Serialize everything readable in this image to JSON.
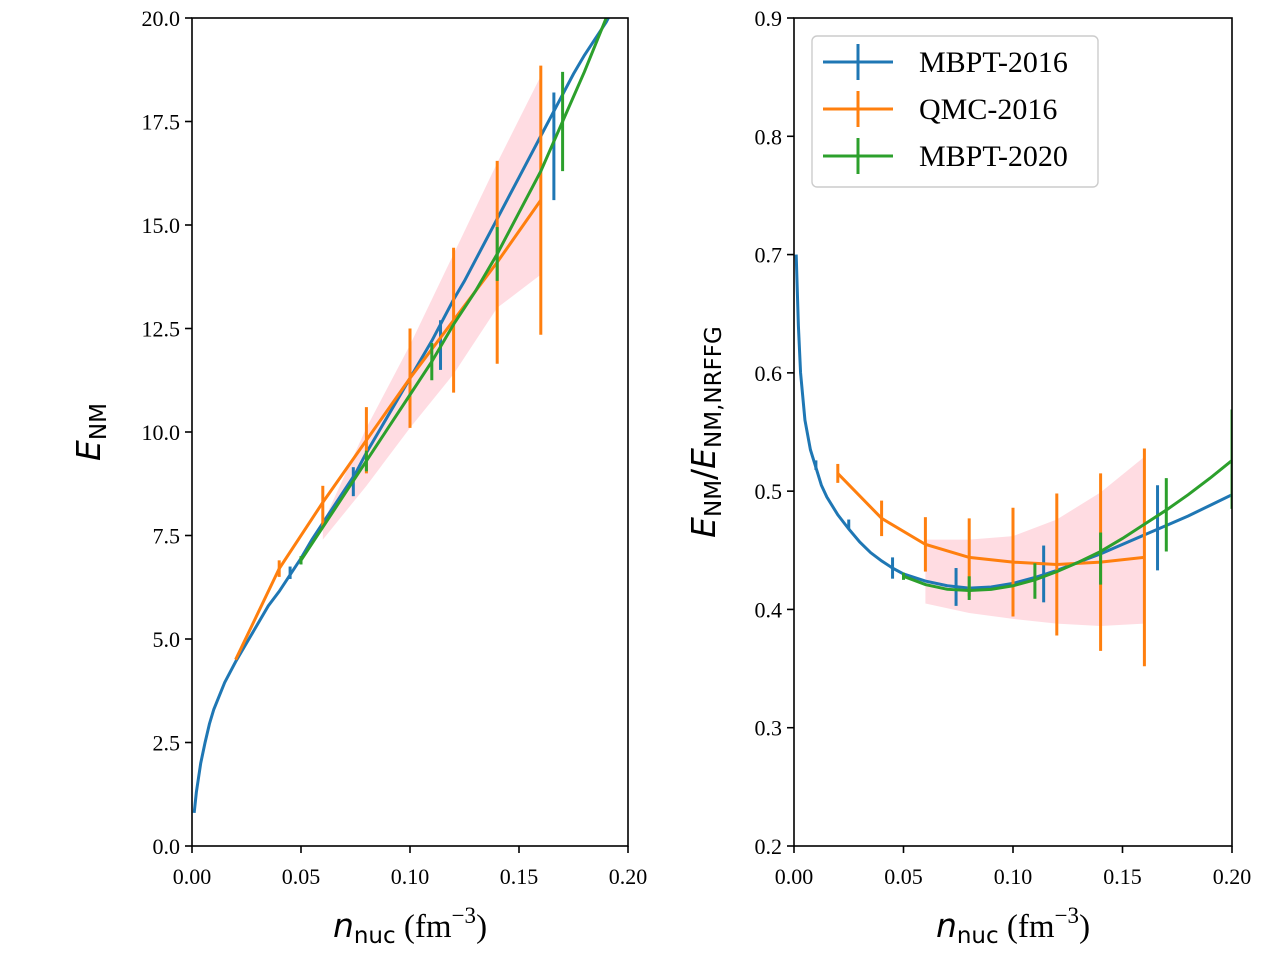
{
  "chart_data": [
    {
      "type": "line",
      "xlim": [
        0,
        0.2
      ],
      "ylim": [
        0,
        20
      ],
      "xticks": [
        "0.00",
        "0.05",
        "0.10",
        "0.15",
        "0.20"
      ],
      "yticks": [
        "0.0",
        "2.5",
        "5.0",
        "7.5",
        "10.0",
        "12.5",
        "15.0",
        "17.5",
        "20.0"
      ],
      "xlabel": {
        "main": "n",
        "sub": "nuc",
        "unit": " (fm",
        "sup": "−3",
        "close": ")"
      },
      "ylabel": {
        "main": "E",
        "sub": "NM"
      },
      "band": {
        "color": "#ffc0cb",
        "x": [
          0.06,
          0.08,
          0.1,
          0.12,
          0.14,
          0.16
        ],
        "lower": [
          7.4,
          8.7,
          10.1,
          11.4,
          13.0,
          13.8
        ],
        "upper": [
          7.8,
          10.1,
          12.1,
          14.3,
          16.5,
          18.6
        ]
      },
      "series": [
        {
          "name": "MBPT-2016",
          "color": "#1f77b4",
          "curve": {
            "x": [
              0.001,
              0.002,
              0.004,
              0.006,
              0.008,
              0.01,
              0.015,
              0.02,
              0.025,
              0.03,
              0.035,
              0.04,
              0.045,
              0.05,
              0.055,
              0.06,
              0.065,
              0.07,
              0.075,
              0.08,
              0.085,
              0.09,
              0.095,
              0.1,
              0.105,
              0.11,
              0.115,
              0.12,
              0.125,
              0.13,
              0.135,
              0.14,
              0.145,
              0.15,
              0.155,
              0.16,
              0.165,
              0.17,
              0.175,
              0.18,
              0.185,
              0.19,
              0.195,
              0.2
            ],
            "y": [
              0.8,
              1.3,
              2.0,
              2.5,
              2.95,
              3.3,
              3.95,
              4.45,
              4.9,
              5.35,
              5.8,
              6.15,
              6.55,
              6.95,
              7.4,
              7.8,
              8.2,
              8.6,
              9.0,
              9.5,
              9.95,
              10.4,
              10.85,
              11.3,
              11.75,
              12.2,
              12.7,
              13.2,
              13.65,
              14.15,
              14.65,
              15.15,
              15.65,
              16.15,
              16.65,
              17.15,
              17.65,
              18.15,
              18.65,
              19.1,
              19.5,
              19.9,
              20.4,
              20.9
            ]
          },
          "errorbars": [
            {
              "x": 0.045,
              "y": 6.6,
              "err": 0.15
            },
            {
              "x": 0.074,
              "y": 8.8,
              "err": 0.35
            },
            {
              "x": 0.114,
              "y": 12.1,
              "err": 0.6
            },
            {
              "x": 0.166,
              "y": 16.9,
              "err": 1.3
            }
          ]
        },
        {
          "name": "QMC-2016",
          "color": "#ff7f0e",
          "curve": {
            "x": [
              0.02,
              0.04,
              0.06,
              0.08,
              0.1,
              0.12,
              0.14,
              0.16
            ],
            "y": [
              4.5,
              6.7,
              8.3,
              9.8,
              11.3,
              12.7,
              14.1,
              15.6
            ]
          },
          "errorbars": [
            {
              "x": 0.04,
              "y": 6.7,
              "err": 0.2
            },
            {
              "x": 0.06,
              "y": 8.2,
              "err": 0.5
            },
            {
              "x": 0.08,
              "y": 9.8,
              "err": 0.8
            },
            {
              "x": 0.1,
              "y": 11.3,
              "err": 1.2
            },
            {
              "x": 0.12,
              "y": 12.7,
              "err": 1.75
            },
            {
              "x": 0.14,
              "y": 14.1,
              "err": 2.45
            },
            {
              "x": 0.16,
              "y": 15.6,
              "err": 3.25
            }
          ]
        },
        {
          "name": "MBPT-2020",
          "color": "#2ca02c",
          "curve": {
            "x": [
              0.05,
              0.06,
              0.07,
              0.08,
              0.09,
              0.1,
              0.11,
              0.12,
              0.13,
              0.14,
              0.15,
              0.16,
              0.17,
              0.18,
              0.19,
              0.2
            ],
            "y": [
              6.9,
              7.7,
              8.5,
              9.3,
              10.1,
              10.9,
              11.7,
              12.6,
              13.4,
              14.3,
              15.3,
              16.3,
              17.5,
              18.7,
              20.0,
              21.3
            ]
          },
          "errorbars": [
            {
              "x": 0.05,
              "y": 6.9,
              "err": 0.1
            },
            {
              "x": 0.08,
              "y": 9.3,
              "err": 0.25
            },
            {
              "x": 0.11,
              "y": 11.7,
              "err": 0.45
            },
            {
              "x": 0.14,
              "y": 14.3,
              "err": 0.65
            },
            {
              "x": 0.17,
              "y": 17.5,
              "err": 1.2
            }
          ]
        }
      ]
    },
    {
      "type": "line",
      "xlim": [
        0,
        0.2
      ],
      "ylim": [
        0.2,
        0.9
      ],
      "xticks": [
        "0.00",
        "0.05",
        "0.10",
        "0.15",
        "0.20"
      ],
      "yticks": [
        "0.2",
        "0.3",
        "0.4",
        "0.5",
        "0.6",
        "0.7",
        "0.8",
        "0.9"
      ],
      "xlabel": {
        "main": "n",
        "sub": "nuc",
        "unit": " (fm",
        "sup": "−3",
        "close": ")"
      },
      "ylabel": {
        "main": "E",
        "sub": "NM",
        "sep": "/",
        "main2": "E",
        "sub2": "NM,NRFFG"
      },
      "legend": {
        "position": "upper left",
        "entries": [
          "MBPT-2016",
          "QMC-2016",
          "MBPT-2020"
        ]
      },
      "band": {
        "color": "#ffc0cb",
        "x": [
          0.06,
          0.08,
          0.1,
          0.12,
          0.14,
          0.16
        ],
        "lower": [
          0.405,
          0.397,
          0.392,
          0.388,
          0.386,
          0.388
        ],
        "upper": [
          0.459,
          0.459,
          0.462,
          0.476,
          0.499,
          0.529
        ]
      },
      "series": [
        {
          "name": "MBPT-2016",
          "color": "#1f77b4",
          "curve": {
            "x": [
              0.001,
              0.002,
              0.003,
              0.005,
              0.0075,
              0.01,
              0.0125,
              0.015,
              0.02,
              0.025,
              0.03,
              0.035,
              0.04,
              0.045,
              0.05,
              0.06,
              0.07,
              0.08,
              0.09,
              0.1,
              0.11,
              0.12,
              0.13,
              0.14,
              0.15,
              0.16,
              0.17,
              0.18,
              0.19,
              0.2
            ],
            "y": [
              0.7,
              0.64,
              0.6,
              0.56,
              0.535,
              0.52,
              0.505,
              0.495,
              0.48,
              0.468,
              0.457,
              0.448,
              0.441,
              0.435,
              0.43,
              0.424,
              0.42,
              0.418,
              0.419,
              0.422,
              0.427,
              0.433,
              0.44,
              0.447,
              0.455,
              0.463,
              0.471,
              0.479,
              0.488,
              0.497
            ]
          },
          "errorbars": [
            {
              "x": 0.01,
              "y": 0.522,
              "err": 0.004
            },
            {
              "x": 0.025,
              "y": 0.472,
              "err": 0.004
            },
            {
              "x": 0.045,
              "y": 0.435,
              "err": 0.009
            },
            {
              "x": 0.074,
              "y": 0.419,
              "err": 0.016
            },
            {
              "x": 0.114,
              "y": 0.43,
              "err": 0.024
            },
            {
              "x": 0.166,
              "y": 0.469,
              "err": 0.036
            }
          ]
        },
        {
          "name": "QMC-2016",
          "color": "#ff7f0e",
          "curve": {
            "x": [
              0.02,
              0.04,
              0.06,
              0.08,
              0.1,
              0.12,
              0.14,
              0.16
            ],
            "y": [
              0.515,
              0.477,
              0.455,
              0.444,
              0.44,
              0.438,
              0.44,
              0.444
            ]
          },
          "errorbars": [
            {
              "x": 0.02,
              "y": 0.515,
              "err": 0.008
            },
            {
              "x": 0.04,
              "y": 0.477,
              "err": 0.015
            },
            {
              "x": 0.06,
              "y": 0.455,
              "err": 0.023
            },
            {
              "x": 0.08,
              "y": 0.444,
              "err": 0.033
            },
            {
              "x": 0.1,
              "y": 0.44,
              "err": 0.046
            },
            {
              "x": 0.12,
              "y": 0.438,
              "err": 0.06
            },
            {
              "x": 0.14,
              "y": 0.44,
              "err": 0.075
            },
            {
              "x": 0.16,
              "y": 0.444,
              "err": 0.092
            }
          ]
        },
        {
          "name": "MBPT-2020",
          "color": "#2ca02c",
          "curve": {
            "x": [
              0.05,
              0.06,
              0.07,
              0.08,
              0.09,
              0.1,
              0.11,
              0.12,
              0.13,
              0.14,
              0.15,
              0.16,
              0.17,
              0.18,
              0.19,
              0.2
            ],
            "y": [
              0.428,
              0.421,
              0.417,
              0.416,
              0.417,
              0.42,
              0.425,
              0.432,
              0.44,
              0.449,
              0.46,
              0.472,
              0.484,
              0.497,
              0.511,
              0.526
            ]
          },
          "errorbars": [
            {
              "x": 0.05,
              "y": 0.428,
              "err": 0.003
            },
            {
              "x": 0.08,
              "y": 0.418,
              "err": 0.01
            },
            {
              "x": 0.11,
              "y": 0.424,
              "err": 0.015
            },
            {
              "x": 0.14,
              "y": 0.443,
              "err": 0.022
            },
            {
              "x": 0.17,
              "y": 0.48,
              "err": 0.031
            },
            {
              "x": 0.2,
              "y": 0.527,
              "err": 0.042
            }
          ]
        }
      ]
    }
  ]
}
